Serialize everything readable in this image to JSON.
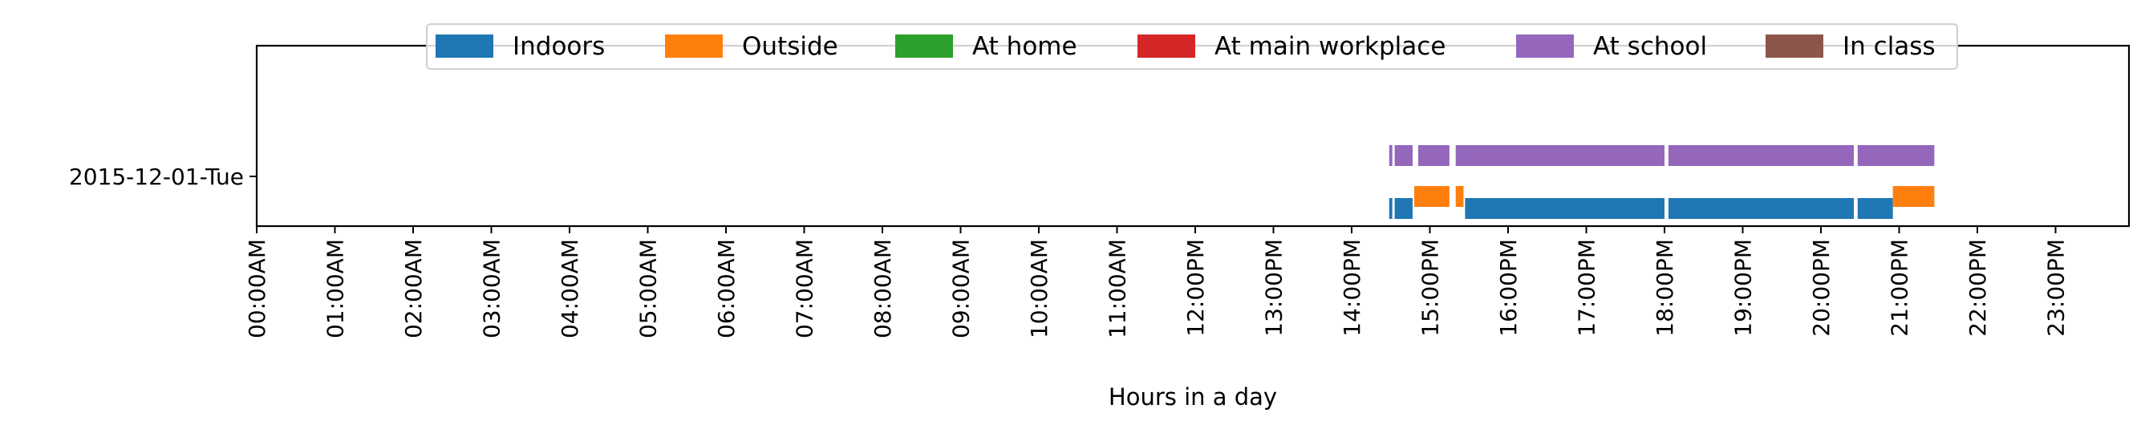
{
  "chart_data": {
    "type": "timeline",
    "xlabel": "Hours in a day",
    "ylabel": "",
    "xlim": [
      0,
      24
    ],
    "xtick_labels": [
      "00:00AM",
      "01:00AM",
      "02:00AM",
      "03:00AM",
      "04:00AM",
      "05:00AM",
      "06:00AM",
      "07:00AM",
      "08:00AM",
      "09:00AM",
      "10:00AM",
      "11:00AM",
      "12:00PM",
      "13:00PM",
      "14:00PM",
      "15:00PM",
      "16:00PM",
      "17:00PM",
      "18:00PM",
      "19:00PM",
      "20:00PM",
      "21:00PM",
      "22:00PM",
      "23:00PM"
    ],
    "ytick_labels": [
      "2015-12-01-Tue"
    ],
    "legend_position": "top-center",
    "legend": [
      {
        "name": "Indoors",
        "color": "#1f77b4"
      },
      {
        "name": "Outside",
        "color": "#ff7f0e"
      },
      {
        "name": "At home",
        "color": "#2ca02c"
      },
      {
        "name": "At main workplace",
        "color": "#d62728"
      },
      {
        "name": "At school",
        "color": "#9467bd"
      },
      {
        "name": "In class",
        "color": "#8c564b"
      }
    ],
    "series": [
      {
        "name": "Indoors",
        "intervals": [
          [
            14.48,
            14.52
          ],
          [
            14.55,
            14.78
          ],
          [
            15.45,
            18.0
          ],
          [
            18.05,
            20.42
          ],
          [
            20.47,
            20.92
          ]
        ]
      },
      {
        "name": "Outside",
        "intervals": [
          [
            14.8,
            15.25
          ],
          [
            15.33,
            15.43
          ],
          [
            20.92,
            21.45
          ]
        ]
      },
      {
        "name": "At home",
        "intervals": []
      },
      {
        "name": "At main workplace",
        "intervals": []
      },
      {
        "name": "At school",
        "intervals": [
          [
            14.48,
            14.52
          ],
          [
            14.55,
            14.78
          ],
          [
            14.85,
            15.25
          ],
          [
            15.33,
            18.0
          ],
          [
            18.05,
            20.42
          ],
          [
            20.47,
            21.45
          ]
        ]
      },
      {
        "name": "In class",
        "intervals": []
      }
    ]
  }
}
